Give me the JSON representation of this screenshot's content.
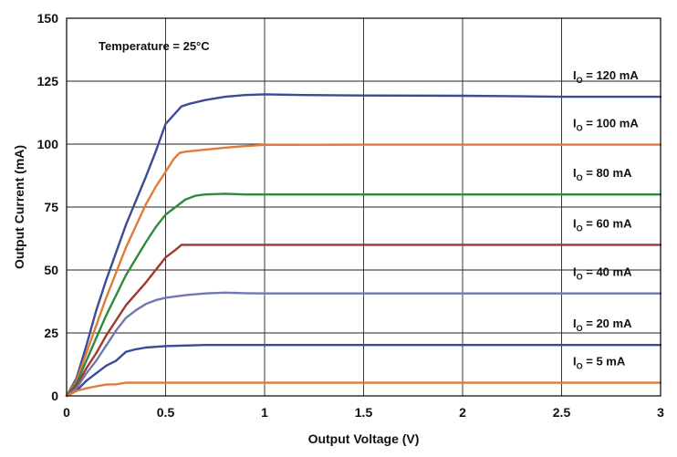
{
  "chart_data": {
    "type": "line",
    "title": "",
    "xlabel": "Output Voltage (V)",
    "ylabel": "Output Current (mA)",
    "xlim": [
      0,
      3
    ],
    "ylim": [
      0,
      150
    ],
    "xticks": [
      0,
      0.5,
      1,
      1.5,
      2,
      2.5,
      3
    ],
    "xtick_labels": [
      "0",
      "0.5",
      "1",
      "1.5",
      "2",
      "2.5",
      "3"
    ],
    "yticks": [
      0,
      25,
      50,
      75,
      100,
      125,
      150
    ],
    "ytick_labels": [
      "0",
      "25",
      "50",
      "75",
      "100",
      "125",
      "150"
    ],
    "grid": true,
    "annotation": "Temperature = 25°C",
    "series": [
      {
        "name": "IO = 120 mA",
        "label_prefix": "I",
        "label_sub": "O",
        "label_suffix": " = 120 mA",
        "color": "#3d4a96",
        "points": [
          [
            0,
            0
          ],
          [
            0.05,
            7
          ],
          [
            0.1,
            20
          ],
          [
            0.15,
            34
          ],
          [
            0.2,
            46
          ],
          [
            0.3,
            68
          ],
          [
            0.4,
            87
          ],
          [
            0.45,
            97
          ],
          [
            0.5,
            108
          ],
          [
            0.58,
            115
          ],
          [
            0.62,
            116
          ],
          [
            0.7,
            117.5
          ],
          [
            0.8,
            118.8
          ],
          [
            0.9,
            119.5
          ],
          [
            1.0,
            119.8
          ],
          [
            1.2,
            119.5
          ],
          [
            1.5,
            119.3
          ],
          [
            2.0,
            119.2
          ],
          [
            2.3,
            119
          ],
          [
            2.5,
            118.8
          ],
          [
            3.0,
            118.8
          ]
        ]
      },
      {
        "name": "IO = 100 mA",
        "label_prefix": "I",
        "label_sub": "O",
        "label_suffix": " = 100 mA",
        "color": "#e07b39",
        "points": [
          [
            0,
            0
          ],
          [
            0.05,
            6
          ],
          [
            0.1,
            17
          ],
          [
            0.15,
            28
          ],
          [
            0.2,
            39
          ],
          [
            0.3,
            59
          ],
          [
            0.4,
            76
          ],
          [
            0.45,
            83
          ],
          [
            0.5,
            89
          ],
          [
            0.54,
            94
          ],
          [
            0.57,
            96.5
          ],
          [
            0.6,
            97
          ],
          [
            0.7,
            97.8
          ],
          [
            0.8,
            98.6
          ],
          [
            0.9,
            99.2
          ],
          [
            1.0,
            99.7
          ],
          [
            1.5,
            99.8
          ],
          [
            2.0,
            99.8
          ],
          [
            2.5,
            99.8
          ],
          [
            3.0,
            99.8
          ]
        ]
      },
      {
        "name": "IO = 80 mA",
        "label_prefix": "I",
        "label_sub": "O",
        "label_suffix": " = 80 mA",
        "color": "#2e8b3e",
        "points": [
          [
            0,
            0
          ],
          [
            0.05,
            5
          ],
          [
            0.1,
            14
          ],
          [
            0.15,
            23
          ],
          [
            0.2,
            32
          ],
          [
            0.3,
            48
          ],
          [
            0.4,
            61
          ],
          [
            0.45,
            67
          ],
          [
            0.5,
            72
          ],
          [
            0.55,
            75
          ],
          [
            0.6,
            78
          ],
          [
            0.65,
            79.5
          ],
          [
            0.7,
            80
          ],
          [
            0.8,
            80.3
          ],
          [
            0.9,
            80
          ],
          [
            1.0,
            80
          ],
          [
            1.5,
            80
          ],
          [
            2.0,
            80
          ],
          [
            2.5,
            80
          ],
          [
            3.0,
            80
          ]
        ]
      },
      {
        "name": "IO = 60 mA",
        "label_prefix": "I",
        "label_sub": "O",
        "label_suffix": " = 60 mA",
        "color": "#a0392e",
        "points": [
          [
            0,
            0
          ],
          [
            0.05,
            4
          ],
          [
            0.1,
            11
          ],
          [
            0.15,
            17
          ],
          [
            0.2,
            24
          ],
          [
            0.3,
            36
          ],
          [
            0.4,
            45
          ],
          [
            0.45,
            50
          ],
          [
            0.5,
            55
          ],
          [
            0.55,
            58
          ],
          [
            0.58,
            60
          ],
          [
            0.7,
            60
          ],
          [
            1.0,
            60
          ],
          [
            1.5,
            60
          ],
          [
            2.0,
            60
          ],
          [
            2.5,
            60
          ],
          [
            3.0,
            60
          ]
        ]
      },
      {
        "name": "IO = 40 mA",
        "label_prefix": "I",
        "label_sub": "O",
        "label_suffix": " = 40 mA",
        "color": "#7278b0",
        "points": [
          [
            0,
            0
          ],
          [
            0.05,
            3
          ],
          [
            0.1,
            9
          ],
          [
            0.15,
            14
          ],
          [
            0.2,
            20
          ],
          [
            0.25,
            26
          ],
          [
            0.3,
            31
          ],
          [
            0.35,
            34
          ],
          [
            0.4,
            36.5
          ],
          [
            0.45,
            38
          ],
          [
            0.5,
            39
          ],
          [
            0.6,
            40
          ],
          [
            0.7,
            40.7
          ],
          [
            0.8,
            41
          ],
          [
            0.9,
            40.8
          ],
          [
            1.0,
            40.7
          ],
          [
            1.5,
            40.7
          ],
          [
            2.0,
            40.7
          ],
          [
            2.5,
            40.7
          ],
          [
            3.0,
            40.7
          ]
        ]
      },
      {
        "name": "IO = 20 mA",
        "label_prefix": "I",
        "label_sub": "O",
        "label_suffix": " = 20 mA",
        "color": "#3d4a96",
        "points": [
          [
            0,
            0
          ],
          [
            0.05,
            2
          ],
          [
            0.1,
            6
          ],
          [
            0.15,
            9
          ],
          [
            0.2,
            12
          ],
          [
            0.25,
            14
          ],
          [
            0.3,
            17.5
          ],
          [
            0.35,
            18.5
          ],
          [
            0.4,
            19.2
          ],
          [
            0.5,
            19.8
          ],
          [
            0.6,
            20
          ],
          [
            0.7,
            20.2
          ],
          [
            1.0,
            20.2
          ],
          [
            1.5,
            20.2
          ],
          [
            2.0,
            20.2
          ],
          [
            2.5,
            20.2
          ],
          [
            3.0,
            20.2
          ]
        ]
      },
      {
        "name": "IO = 5 mA",
        "label_prefix": "I",
        "label_sub": "O",
        "label_suffix": " = 5 mA",
        "color": "#e07b39",
        "points": [
          [
            0,
            0
          ],
          [
            0.05,
            2
          ],
          [
            0.1,
            3
          ],
          [
            0.15,
            3.8
          ],
          [
            0.2,
            4.5
          ],
          [
            0.25,
            4.6
          ],
          [
            0.3,
            5.2
          ],
          [
            0.4,
            5.2
          ],
          [
            0.6,
            5.2
          ],
          [
            1.0,
            5.2
          ],
          [
            1.5,
            5.2
          ],
          [
            2.0,
            5.2
          ],
          [
            2.5,
            5.2
          ],
          [
            3.0,
            5.2
          ]
        ]
      }
    ]
  }
}
